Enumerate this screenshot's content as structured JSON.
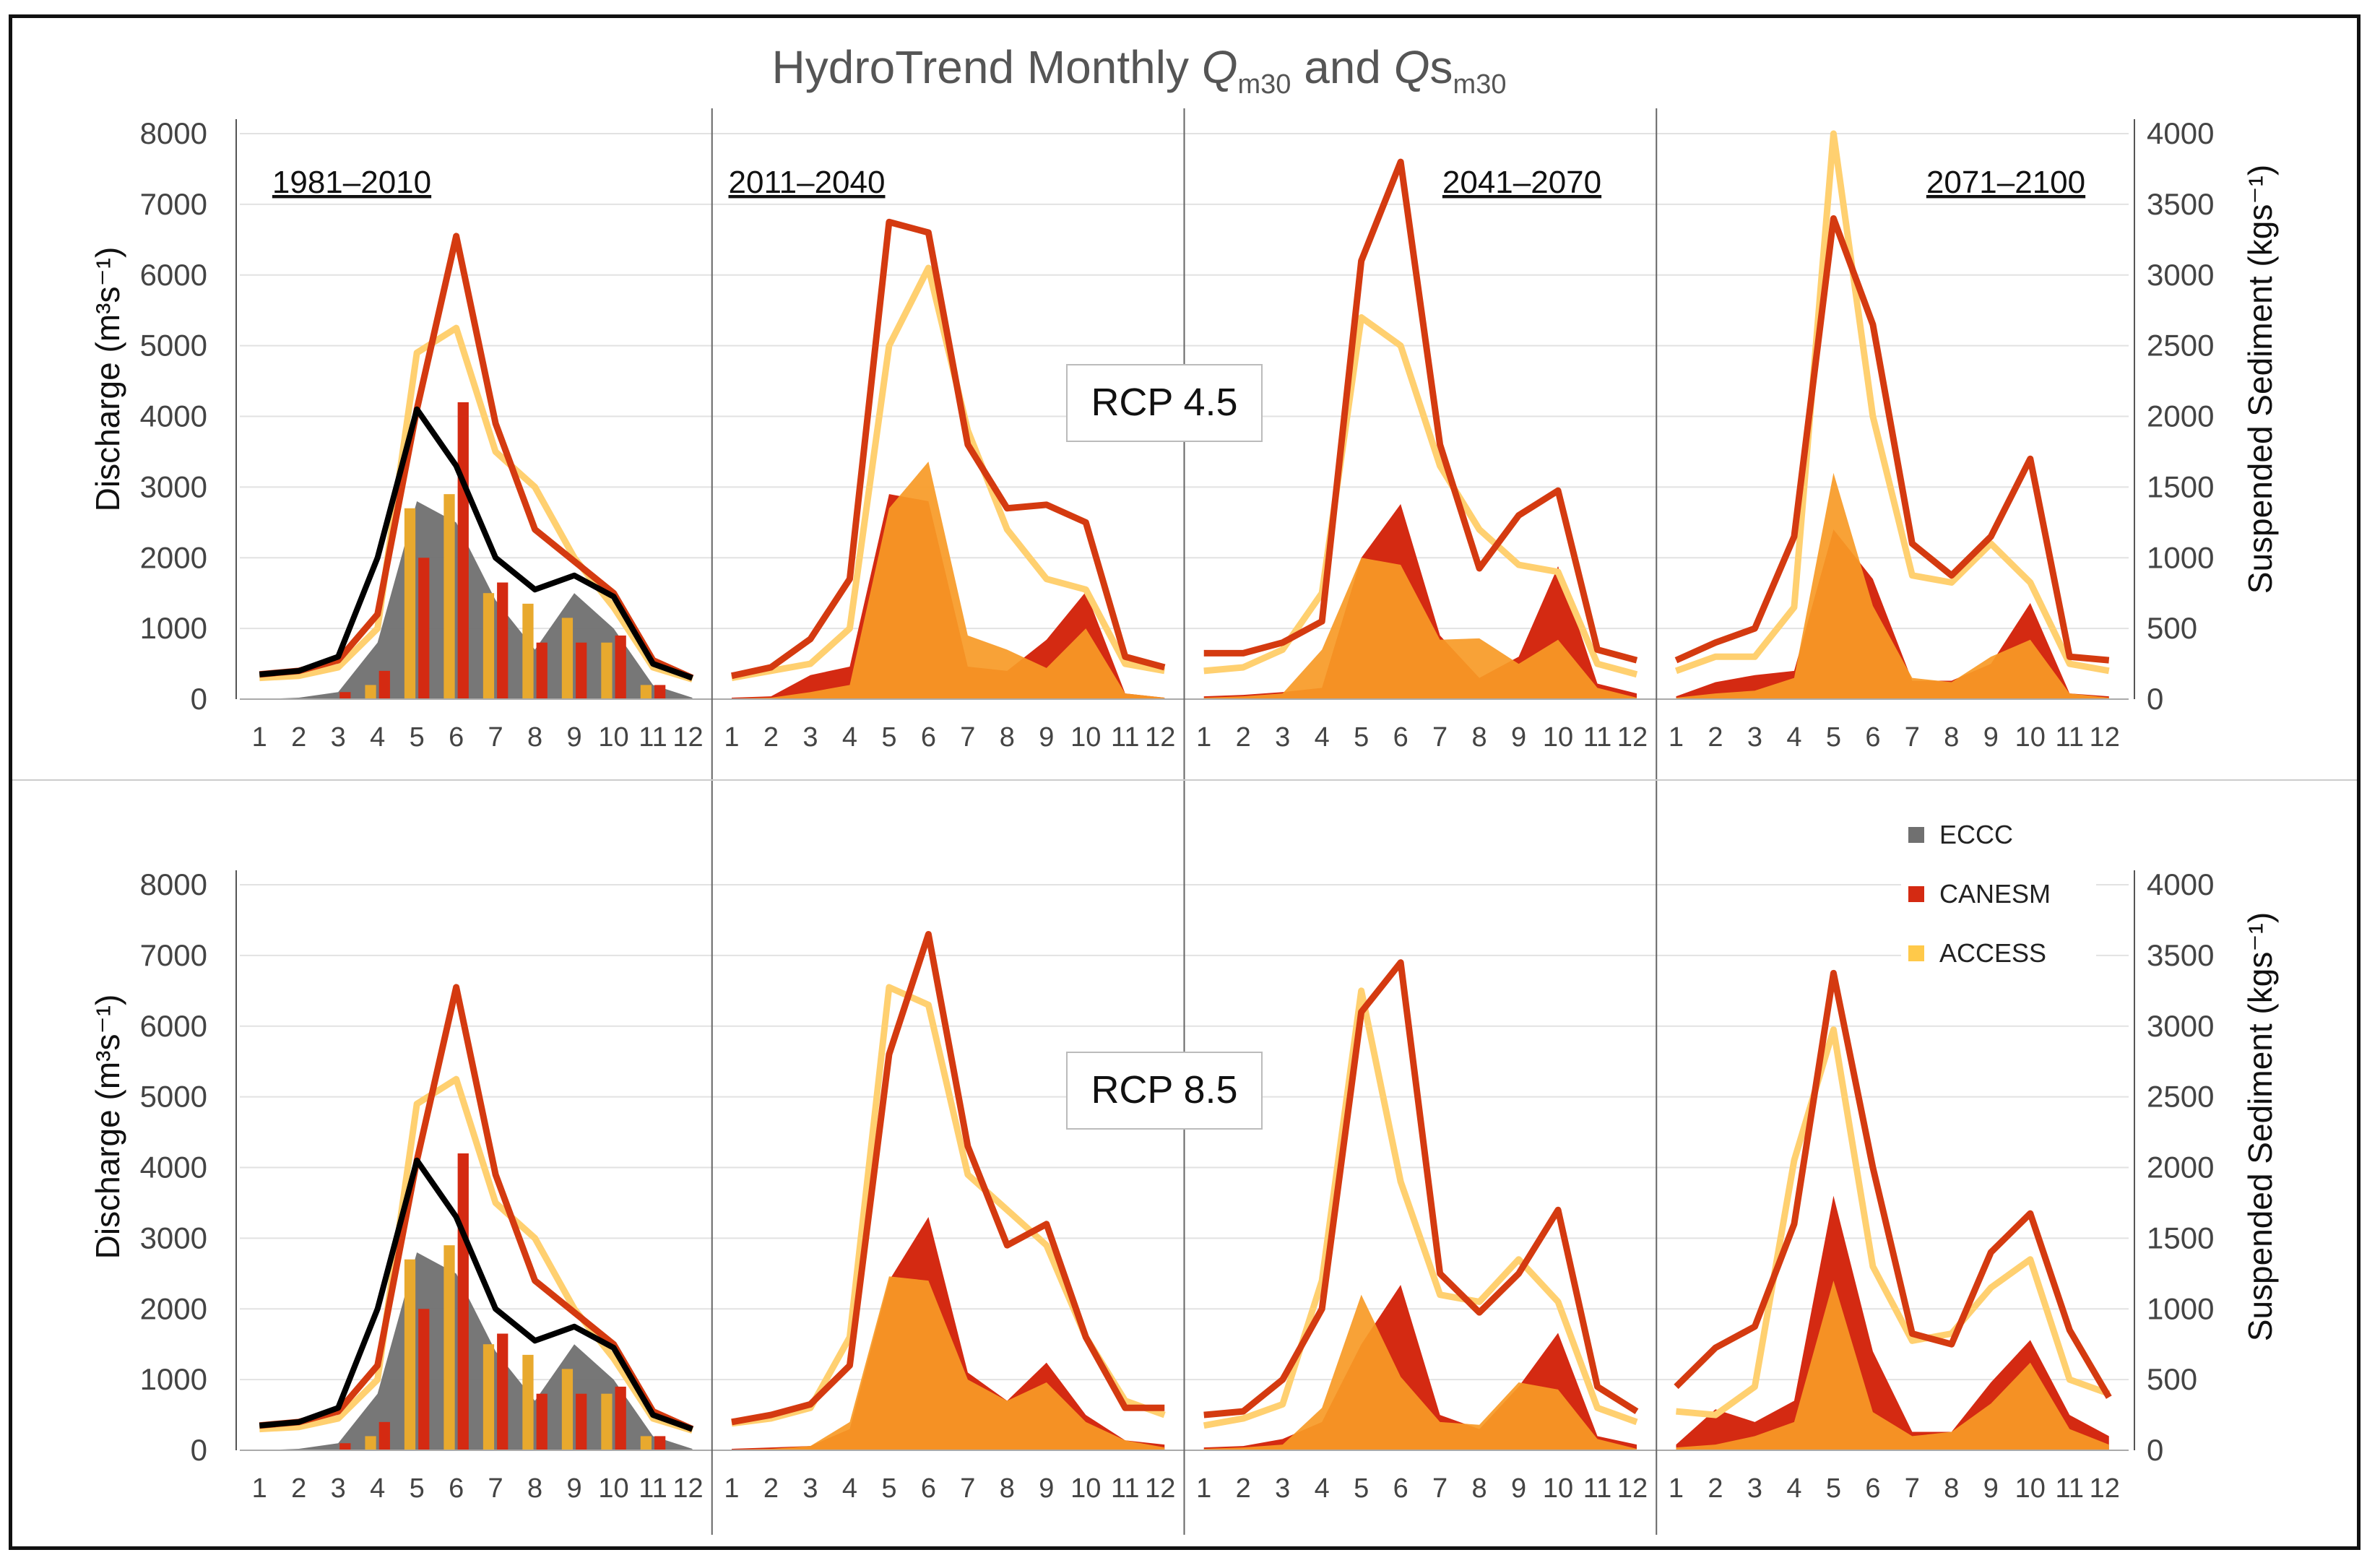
{
  "chart_data": {
    "type": "line",
    "title_main": "HydroTrend Monthly ",
    "title_q": "Q",
    "title_q_sub": "m30",
    "title_and": " and ",
    "title_qs": "Q",
    "title_qs_s": "s",
    "title_qs_sub": "m30",
    "y_left_label": "Discharge  (m³s⁻¹)",
    "y_right_label": "Suspended Sediment  (kgs⁻¹)",
    "y_left_range": [
      0,
      8000
    ],
    "y_right_range": [
      0,
      4000
    ],
    "y_left_ticks": [
      "0",
      "1000",
      "2000",
      "3000",
      "4000",
      "5000",
      "6000",
      "7000",
      "8000"
    ],
    "y_right_ticks": [
      "0",
      "500",
      "1000",
      "1500",
      "2000",
      "2500",
      "3000",
      "3500",
      "4000"
    ],
    "months": [
      "1",
      "2",
      "3",
      "4",
      "5",
      "6",
      "7",
      "8",
      "9",
      "10",
      "11",
      "12"
    ],
    "periods": [
      "1981–2010",
      "2011–2040",
      "2041–2070",
      "2071–2100"
    ],
    "colors": {
      "ECCC": "#707070",
      "ECCC_line": "#000000",
      "CANESM": "#d42a12",
      "CANESM_line": "#d43a10",
      "ACCESS": "#ffc94a",
      "ACCESS_line": "#ffd070",
      "ACCESS_fill": "#f79a26",
      "ACCESS_bar": "#e8a92e"
    },
    "legend": [
      {
        "name": "ECCC",
        "color": "#707070"
      },
      {
        "name": "CANESM",
        "color": "#d42a12"
      },
      {
        "name": "ACCESS",
        "color": "#ffc94a"
      }
    ],
    "baseline": {
      "discharge_ECCC": [
        350,
        400,
        600,
        2000,
        4100,
        3300,
        2000,
        1550,
        1750,
        1450,
        500,
        300
      ],
      "discharge_CANESM": [
        350,
        400,
        550,
        1200,
        4100,
        6550,
        3900,
        2400,
        1950,
        1500,
        550,
        300
      ],
      "discharge_ACCESS": [
        300,
        330,
        450,
        1000,
        4900,
        5250,
        3500,
        3000,
        2000,
        1300,
        450,
        280
      ],
      "sediment_ECCC": [
        0,
        10,
        50,
        400,
        1400,
        1250,
        700,
        350,
        750,
        500,
        100,
        10
      ],
      "bars_CANESM": [
        0,
        0,
        100,
        400,
        2000,
        4200,
        1650,
        800,
        800,
        900,
        200,
        0
      ],
      "bars_ACCESS": [
        0,
        0,
        0,
        200,
        2700,
        2900,
        1500,
        1350,
        1150,
        800,
        200,
        0
      ]
    },
    "panels": [
      {
        "name": "RCP 4.5",
        "periods": [
          {
            "period": "2011–2040",
            "discharge_CANESM": [
              330,
              450,
              850,
              1700,
              6750,
              6600,
              3600,
              2700,
              2750,
              2500,
              600,
              450
            ],
            "discharge_ACCESS": [
              300,
              400,
              500,
              1000,
              5000,
              6100,
              3800,
              2400,
              1700,
              1550,
              500,
              400
            ],
            "sediment_CANESM": [
              10,
              20,
              170,
              230,
              1450,
              1400,
              230,
              200,
              420,
              760,
              40,
              10
            ],
            "sediment_ACCESS": [
              5,
              10,
              50,
              100,
              1350,
              1680,
              450,
              350,
              220,
              500,
              40,
              10
            ]
          },
          {
            "period": "2041–2070",
            "discharge_CANESM": [
              650,
              650,
              800,
              1100,
              6200,
              7600,
              3600,
              1850,
              2600,
              2950,
              700,
              550
            ],
            "discharge_ACCESS": [
              400,
              450,
              700,
              1500,
              5400,
              5000,
              3300,
              2400,
              1900,
              1800,
              500,
              350
            ],
            "sediment_CANESM": [
              20,
              30,
              50,
              80,
              1000,
              1380,
              450,
              150,
              300,
              940,
              110,
              40
            ],
            "sediment_ACCESS": [
              10,
              20,
              40,
              350,
              1000,
              950,
              420,
              430,
              250,
              420,
              80,
              10
            ]
          },
          {
            "period": "2071–2100",
            "discharge_CANESM": [
              550,
              800,
              1000,
              2300,
              6800,
              5300,
              2200,
              1750,
              2300,
              3400,
              600,
              550
            ],
            "discharge_ACCESS": [
              400,
              600,
              600,
              1300,
              8000,
              4000,
              1750,
              1650,
              2200,
              1650,
              500,
              400
            ],
            "sediment_CANESM": [
              20,
              120,
              170,
              200,
              1200,
              850,
              130,
              130,
              250,
              680,
              40,
              20
            ],
            "sediment_ACCESS": [
              10,
              40,
              60,
              150,
              1600,
              660,
              150,
              120,
              300,
              420,
              40,
              10
            ]
          }
        ]
      },
      {
        "name": "RCP 8.5",
        "periods": [
          {
            "period": "2011–2040",
            "discharge_CANESM": [
              400,
              500,
              650,
              1200,
              5600,
              7300,
              4300,
              2900,
              3200,
              1600,
              600,
              600
            ],
            "discharge_ACCESS": [
              380,
              450,
              600,
              1600,
              6550,
              6300,
              3900,
              3400,
              2900,
              1600,
              700,
              500
            ],
            "sediment_CANESM": [
              10,
              20,
              30,
              150,
              1200,
              1650,
              550,
              350,
              620,
              250,
              70,
              40
            ],
            "sediment_ACCESS": [
              5,
              10,
              30,
              200,
              1230,
              1200,
              500,
              350,
              480,
              200,
              70,
              20
            ]
          },
          {
            "period": "2041–2070",
            "discharge_CANESM": [
              500,
              550,
              1000,
              2000,
              6200,
              6900,
              2500,
              1950,
              2500,
              3400,
              900,
              550
            ],
            "discharge_ACCESS": [
              350,
              450,
              650,
              2400,
              6500,
              3800,
              2200,
              2100,
              2700,
              2100,
              600,
              400
            ],
            "sediment_CANESM": [
              20,
              30,
              80,
              200,
              750,
              1170,
              250,
              150,
              450,
              830,
              100,
              40
            ],
            "sediment_ACCESS": [
              10,
              20,
              40,
              300,
              1100,
              520,
              200,
              180,
              480,
              430,
              80,
              10
            ]
          },
          {
            "period": "2071–2100",
            "discharge_CANESM": [
              900,
              1450,
              1750,
              3200,
              6750,
              4000,
              1650,
              1500,
              2800,
              3350,
              1700,
              750
            ],
            "discharge_ACCESS": [
              550,
              500,
              900,
              4100,
              5950,
              2600,
              1550,
              1650,
              2300,
              2700,
              1000,
              800
            ],
            "sediment_CANESM": [
              40,
              290,
              200,
              350,
              1800,
              700,
              130,
              130,
              480,
              780,
              250,
              100
            ],
            "sediment_ACCESS": [
              20,
              40,
              100,
              200,
              1200,
              270,
              100,
              130,
              330,
              620,
              150,
              40
            ]
          }
        ]
      }
    ]
  }
}
